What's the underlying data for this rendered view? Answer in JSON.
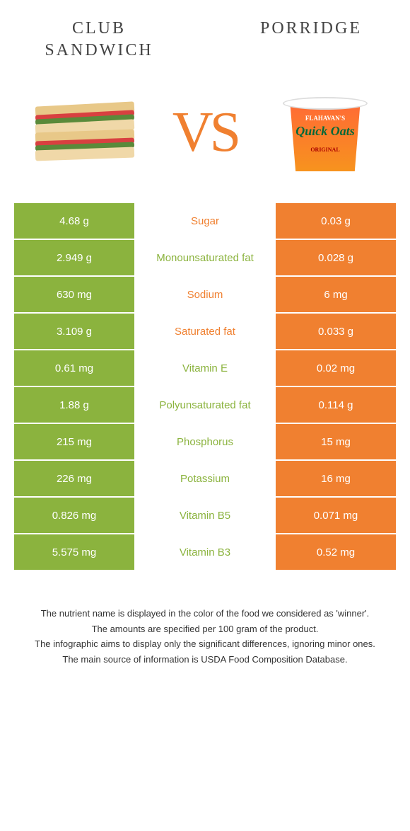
{
  "header": {
    "left_title": "Club Sandwich",
    "right_title": "Porridge",
    "vs": "VS"
  },
  "product_labels": {
    "brand": "FLAHAVAN'S",
    "main": "Quick Oats",
    "sub": "ORIGINAL"
  },
  "colors": {
    "left_bg": "#8bb33e",
    "right_bg": "#f08030",
    "left_text": "#8bb33e",
    "right_text": "#f08030"
  },
  "rows": [
    {
      "left": "4.68 g",
      "label": "Sugar",
      "right": "0.03 g",
      "winner": "right"
    },
    {
      "left": "2.949 g",
      "label": "Monounsaturated fat",
      "right": "0.028 g",
      "winner": "left"
    },
    {
      "left": "630 mg",
      "label": "Sodium",
      "right": "6 mg",
      "winner": "right"
    },
    {
      "left": "3.109 g",
      "label": "Saturated fat",
      "right": "0.033 g",
      "winner": "right"
    },
    {
      "left": "0.61 mg",
      "label": "Vitamin E",
      "right": "0.02 mg",
      "winner": "left"
    },
    {
      "left": "1.88 g",
      "label": "Polyunsaturated fat",
      "right": "0.114 g",
      "winner": "left"
    },
    {
      "left": "215 mg",
      "label": "Phosphorus",
      "right": "15 mg",
      "winner": "left"
    },
    {
      "left": "226 mg",
      "label": "Potassium",
      "right": "16 mg",
      "winner": "left"
    },
    {
      "left": "0.826 mg",
      "label": "Vitamin B5",
      "right": "0.071 mg",
      "winner": "left"
    },
    {
      "left": "5.575 mg",
      "label": "Vitamin B3",
      "right": "0.52 mg",
      "winner": "left"
    }
  ],
  "footer": [
    "The nutrient name is displayed in the color of the food we considered as 'winner'.",
    "The amounts are specified per 100 gram of the product.",
    "The infographic aims to display only the significant differences, ignoring minor ones.",
    "The main source of information is USDA Food Composition Database."
  ]
}
